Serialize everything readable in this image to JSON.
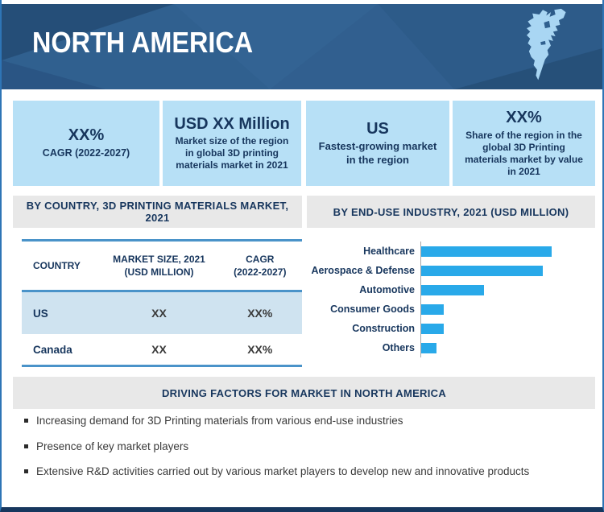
{
  "banner": {
    "title": "NORTH AMERICA"
  },
  "stat_boxes": [
    {
      "headline": "XX%",
      "description": "CAGR (2022-2027)"
    },
    {
      "headline": "USD XX Million",
      "description": "Market size of the region in global 3D printing materials market in 2021"
    },
    {
      "headline": "US",
      "description": "Fastest-growing market in the region"
    },
    {
      "headline": "XX%",
      "description": "Share of the region in the global 3D Printing materials market by value in 2021"
    }
  ],
  "sections": {
    "by_country_header": "BY COUNTRY, 3D PRINTING MATERIALS MARKET, 2021",
    "by_industry_header": "BY END-USE INDUSTRY, 2021 (USD MILLION)",
    "driving_factors_header": "DRIVING FACTORS FOR MARKET IN NORTH AMERICA"
  },
  "country_table": {
    "columns": [
      {
        "l1": "COUNTRY",
        "l2": ""
      },
      {
        "l1": "MARKET SIZE, 2021",
        "l2": "(USD MILLION)"
      },
      {
        "l1": "CAGR",
        "l2": "(2022-2027)"
      }
    ],
    "rows": [
      {
        "country": "US",
        "market_size": "XX",
        "cagr": "XX%"
      },
      {
        "country": "Canada",
        "market_size": "XX",
        "cagr": "XX%"
      }
    ]
  },
  "chart_data": {
    "type": "bar",
    "orientation": "horizontal",
    "title": "BY END-USE INDUSTRY, 2021 (USD MILLION)",
    "categories": [
      "Healthcare",
      "Aerospace & Defense",
      "Automotive",
      "Consumer Goods",
      "Construction",
      "Others"
    ],
    "values": [
      100,
      93,
      48,
      17,
      17,
      12
    ],
    "xlim": [
      0,
      110
    ],
    "grid": false,
    "legend": "none",
    "value_labels_shown": false,
    "bar_color": "#29a9e9"
  },
  "driving_factors": [
    "Increasing demand for 3D Printing materials from various end-use industries",
    "Presence of key market players",
    "Extensive R&D activities carried out by various market players to develop new and innovative products"
  ],
  "colors": {
    "banner_bg": "#30608f",
    "banner_facet_dark": "#1d3f66",
    "map_fill": "#a9d6f3",
    "stat_box_bg": "#b7e0f6",
    "navy_text": "#17365d",
    "section_header_bg": "#e8e8e8",
    "table_border": "#4a93c9",
    "table_row_highlight": "#cfe3f0",
    "bar_blue": "#29a9e9",
    "frame_border_blue": "#2e75b6",
    "frame_border_navy": "#17375e",
    "body_text": "#3a3a3a"
  }
}
